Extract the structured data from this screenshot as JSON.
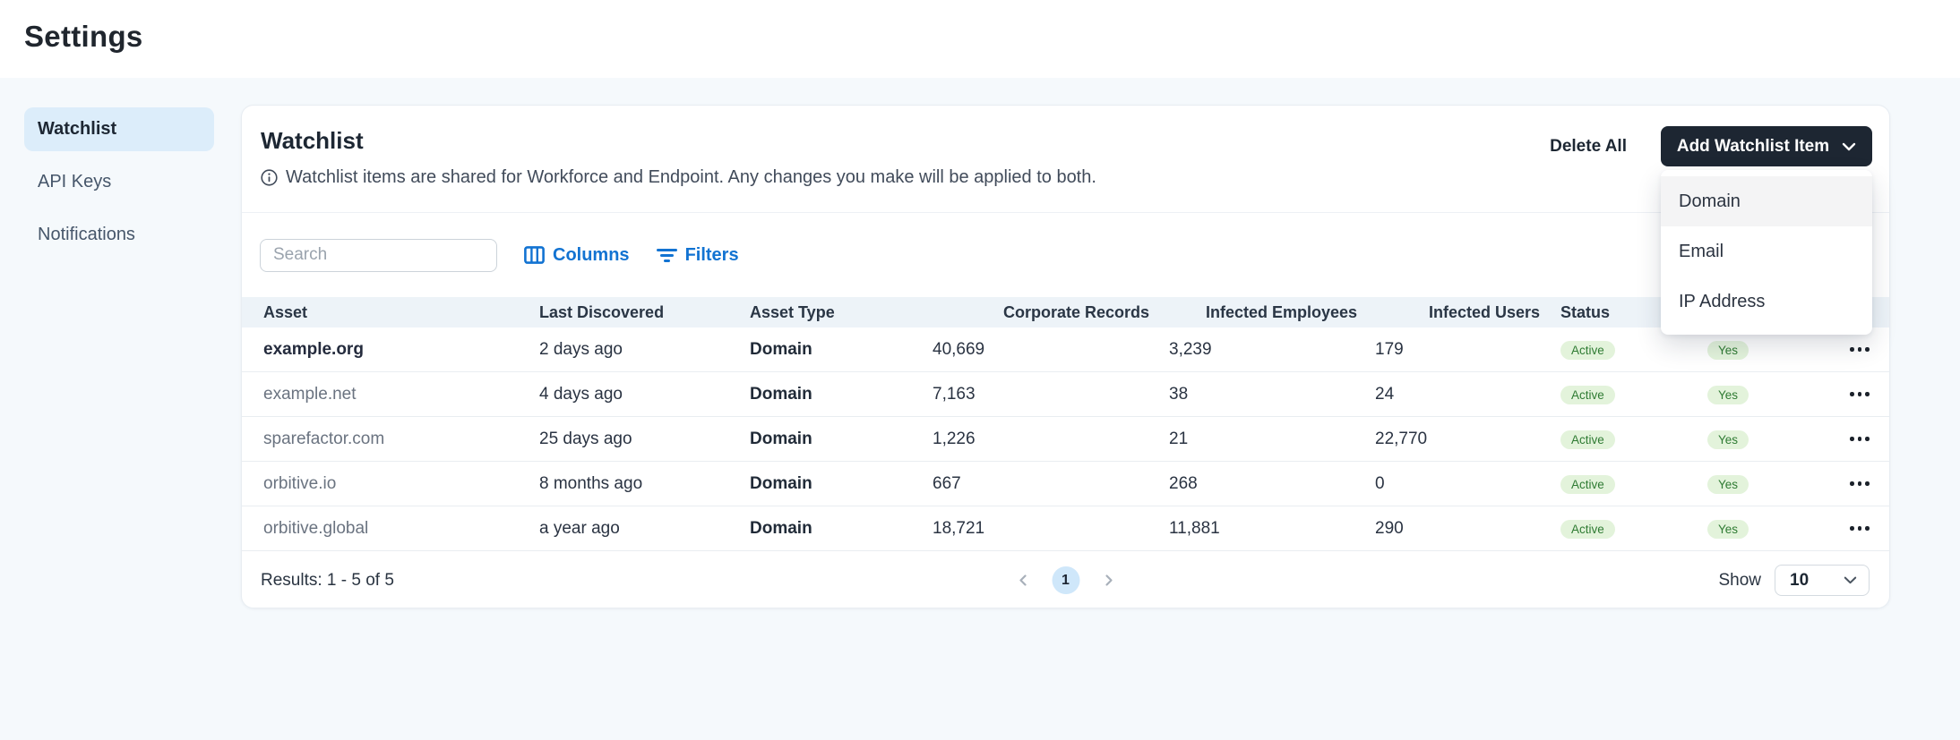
{
  "page_title": "Settings",
  "sidebar": {
    "items": [
      {
        "label": "Watchlist",
        "active": true
      },
      {
        "label": "API Keys",
        "active": false
      },
      {
        "label": "Notifications",
        "active": false
      }
    ]
  },
  "card": {
    "title": "Watchlist",
    "info_note": "Watchlist items are shared for Workforce and Endpoint. Any changes you make will be applied to both.",
    "actions": {
      "delete_all": "Delete All",
      "add_item": "Add Watchlist Item"
    },
    "add_menu": {
      "items": [
        "Domain",
        "Email",
        "IP Address"
      ],
      "highlighted": "Domain"
    },
    "toolbar": {
      "search_placeholder": "Search",
      "columns_label": "Columns",
      "filters_label": "Filters"
    },
    "table": {
      "columns": [
        "Asset",
        "Last Discovered",
        "Asset Type",
        "Corporate Records",
        "Infected Employees",
        "Infected Users",
        "Status",
        "",
        ""
      ],
      "rows": [
        {
          "asset": "example.org",
          "last_discovered": "2 days ago",
          "asset_type": "Domain",
          "corporate_records": "40,669",
          "infected_employees": "3,239",
          "infected_users": "179",
          "status": "Active",
          "flag": "Yes"
        },
        {
          "asset": "example.net",
          "last_discovered": "4 days ago",
          "asset_type": "Domain",
          "corporate_records": "7,163",
          "infected_employees": "38",
          "infected_users": "24",
          "status": "Active",
          "flag": "Yes"
        },
        {
          "asset": "sparefactor.com",
          "last_discovered": "25 days ago",
          "asset_type": "Domain",
          "corporate_records": "1,226",
          "infected_employees": "21",
          "infected_users": "22,770",
          "status": "Active",
          "flag": "Yes"
        },
        {
          "asset": "orbitive.io",
          "last_discovered": "8 months ago",
          "asset_type": "Domain",
          "corporate_records": "667",
          "infected_employees": "268",
          "infected_users": "0",
          "status": "Active",
          "flag": "Yes"
        },
        {
          "asset": "orbitive.global",
          "last_discovered": "a year ago",
          "asset_type": "Domain",
          "corporate_records": "18,721",
          "infected_employees": "11,881",
          "infected_users": "290",
          "status": "Active",
          "flag": "Yes"
        }
      ]
    },
    "footer": {
      "results": "Results: 1 - 5 of 5",
      "page": "1",
      "show_label": "Show",
      "show_value": "10"
    }
  },
  "colors": {
    "accent_blue": "#1273d2",
    "button_dark": "#1d2632",
    "badge_green_bg": "#e3f3db",
    "badge_green_text": "#2f7b33",
    "active_nav_bg": "#dcedfa",
    "page_bg": "#f5f9fc",
    "table_header_bg": "#edf3f8",
    "pagination_active_bg": "#cfe7fa"
  }
}
